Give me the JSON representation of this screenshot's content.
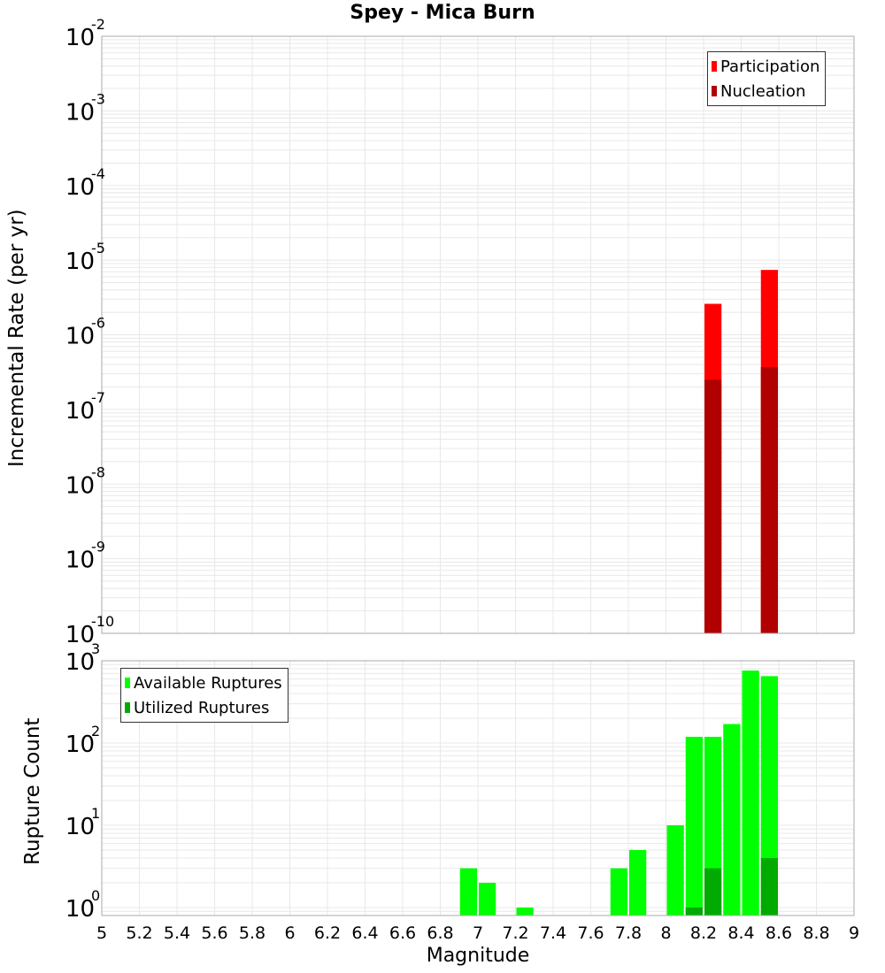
{
  "chart_data": [
    {
      "type": "bar",
      "title": "Spey - Mica Burn",
      "xlabel": "Magnitude",
      "ylabel": "Incremental Rate (per yr)",
      "yscale": "log",
      "ylim": [
        1e-10,
        0.01
      ],
      "xlim": [
        5,
        9
      ],
      "grid": true,
      "legend_position": "top-right",
      "y_tick_labels": [
        "10^-2",
        "10^-3",
        "10^-4",
        "10^-5",
        "10^-6",
        "10^-7",
        "10^-8",
        "10^-9",
        "10^-10"
      ],
      "bin_width": 0.1,
      "series": [
        {
          "name": "Participation",
          "color": "#ff0000",
          "x": [
            8.25,
            8.55
          ],
          "values": [
            2.6e-06,
            7.4e-06
          ]
        },
        {
          "name": "Nucleation",
          "color": "#b00000",
          "x": [
            8.25,
            8.55
          ],
          "values": [
            2.5e-07,
            3.7e-07
          ]
        }
      ]
    },
    {
      "type": "bar",
      "xlabel": "Magnitude",
      "ylabel": "Rupture Count",
      "yscale": "log",
      "ylim": [
        0.8,
        1000
      ],
      "xlim": [
        5,
        9
      ],
      "grid": true,
      "legend_position": "top-left",
      "y_tick_labels": [
        "10^3",
        "10^2",
        "10^1",
        "10^0"
      ],
      "x_tick_labels": [
        "5",
        "5.2",
        "5.4",
        "5.6",
        "5.8",
        "6",
        "6.2",
        "6.4",
        "6.6",
        "6.8",
        "7",
        "7.2",
        "7.4",
        "7.6",
        "7.8",
        "8",
        "8.2",
        "8.4",
        "8.6",
        "8.8",
        "9"
      ],
      "bin_width": 0.1,
      "series": [
        {
          "name": "Available Ruptures",
          "color": "#00ff00",
          "x": [
            6.95,
            7.05,
            7.25,
            7.75,
            7.85,
            8.05,
            8.15,
            8.25,
            8.35,
            8.45,
            8.55
          ],
          "values": [
            3,
            2,
            1,
            3,
            5,
            10,
            119,
            119,
            170,
            760,
            650
          ]
        },
        {
          "name": "Utilized Ruptures",
          "color": "#00aa00",
          "x": [
            8.15,
            8.25,
            8.55
          ],
          "values": [
            1,
            3,
            4
          ]
        }
      ]
    }
  ],
  "header": {
    "title": "Spey - Mica Burn"
  },
  "top": {
    "ylabel": "Incremental Rate (per yr)",
    "legend": [
      {
        "label": "Participation",
        "color": "#ff0000"
      },
      {
        "label": "Nucleation",
        "color": "#b00000"
      }
    ]
  },
  "bottom": {
    "ylabel": "Rupture Count",
    "xlabel": "Magnitude",
    "legend": [
      {
        "label": "Available Ruptures",
        "color": "#00ff00"
      },
      {
        "label": "Utilized Ruptures",
        "color": "#00aa00"
      }
    ]
  }
}
